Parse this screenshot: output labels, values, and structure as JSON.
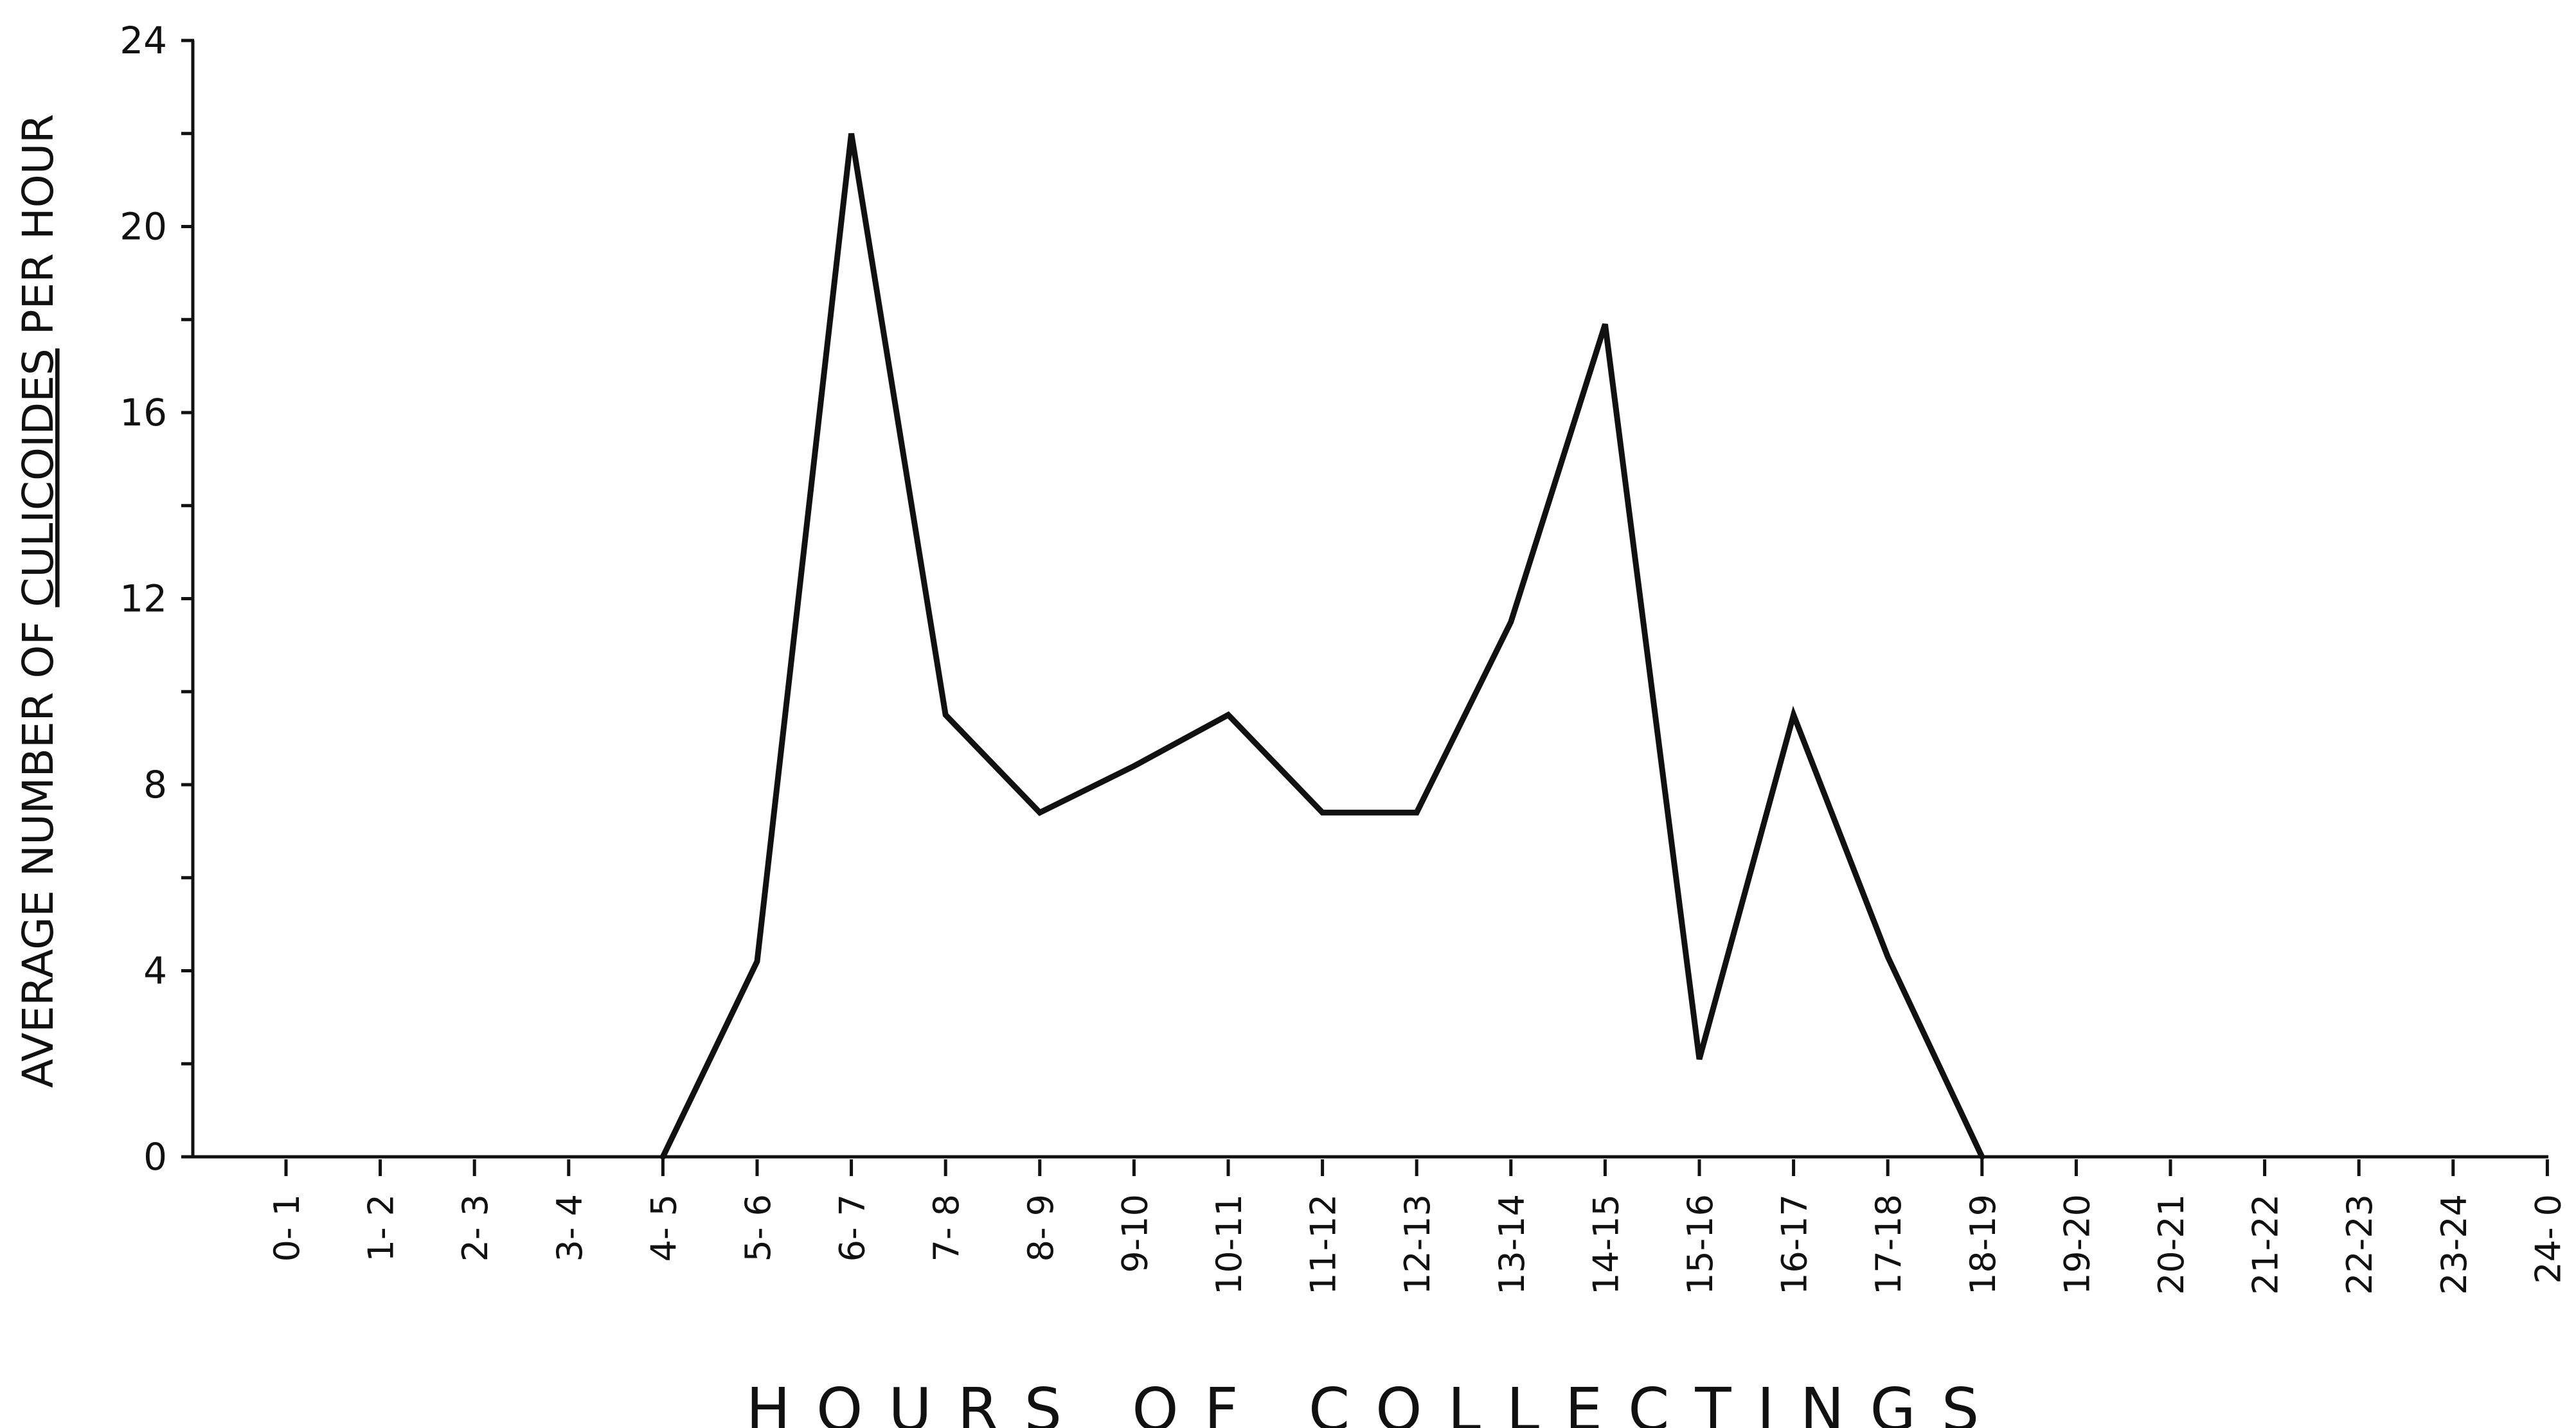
{
  "chart_data": {
    "type": "line",
    "title": "",
    "xlabel": "HOURS OF COLLECTINGS",
    "ylabel": {
      "prefix": "AVERAGE NUMBER OF ",
      "emphasis": "CULICOIDES",
      "suffix": " PER HOUR"
    },
    "ylim": [
      0,
      24
    ],
    "yticks": [
      "0",
      "4",
      "8",
      "12",
      "16",
      "20",
      "24"
    ],
    "grid": false,
    "legend": "none",
    "categories": [
      "0- 1",
      "1- 2",
      "2- 3",
      "3- 4",
      "4- 5",
      "5- 6",
      "6- 7",
      "7- 8",
      "8- 9",
      "9-10",
      "10-11",
      "11-12",
      "12-13",
      "13-14",
      "14-15",
      "15-16",
      "16-17",
      "17-18",
      "18-19",
      "19-20",
      "20-21",
      "21-22",
      "22-23",
      "23-24",
      "24- 0"
    ],
    "series": [
      {
        "values": [
          null,
          null,
          null,
          null,
          0,
          4.2,
          22,
          9.5,
          7.4,
          8.4,
          9.5,
          7.4,
          7.4,
          11.5,
          17.9,
          2.1,
          9.5,
          4.3,
          0,
          null,
          null,
          null,
          null,
          null,
          null
        ]
      }
    ],
    "line_color": "#111111"
  }
}
